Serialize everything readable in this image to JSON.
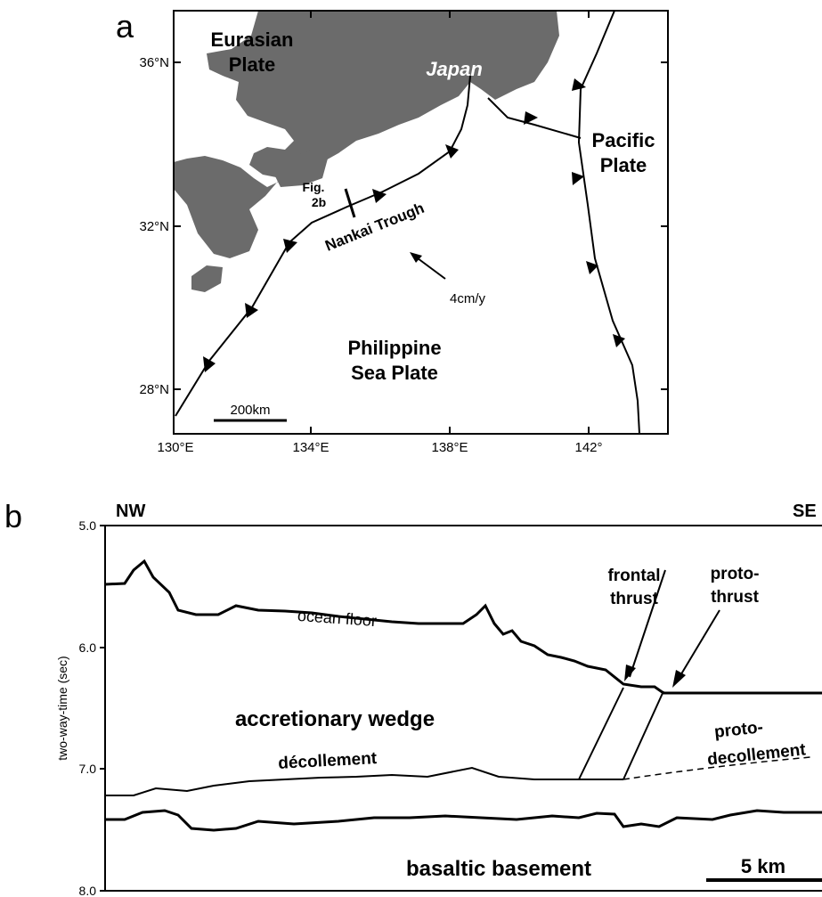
{
  "panel_a": {
    "label": "a",
    "lat_labels": [
      "36°N",
      "32°N",
      "28°N"
    ],
    "lon_labels": [
      "130°E",
      "134°E",
      "138°E",
      "142°"
    ],
    "eurasian_plate": [
      "Eurasian",
      "Plate"
    ],
    "japan": "Japan",
    "pacific_plate": [
      "Pacific",
      "Plate"
    ],
    "philippine_plate": [
      "Philippine",
      "Sea Plate"
    ],
    "nankai_trough": "Nankai Trough",
    "fig_ref": [
      "Fig.",
      "2b"
    ],
    "velocity": "4cm/y",
    "scale": "200km"
  },
  "panel_b": {
    "label": "b",
    "nw": "NW",
    "se": "SE",
    "y_axis_label": "two-way-time (sec)",
    "y_ticks": [
      "5.0",
      "6.0",
      "7.0",
      "8.0"
    ],
    "ocean_floor": "ocean floor",
    "frontal_thrust": [
      "frontal",
      "thrust"
    ],
    "proto_thrust": [
      "proto-",
      "thrust"
    ],
    "accretionary_wedge": "accretionary wedge",
    "proto_decollement": [
      "proto-",
      "decollement"
    ],
    "decollement": "décollement",
    "basaltic_basement": "basaltic basement",
    "scale": "5 km"
  }
}
